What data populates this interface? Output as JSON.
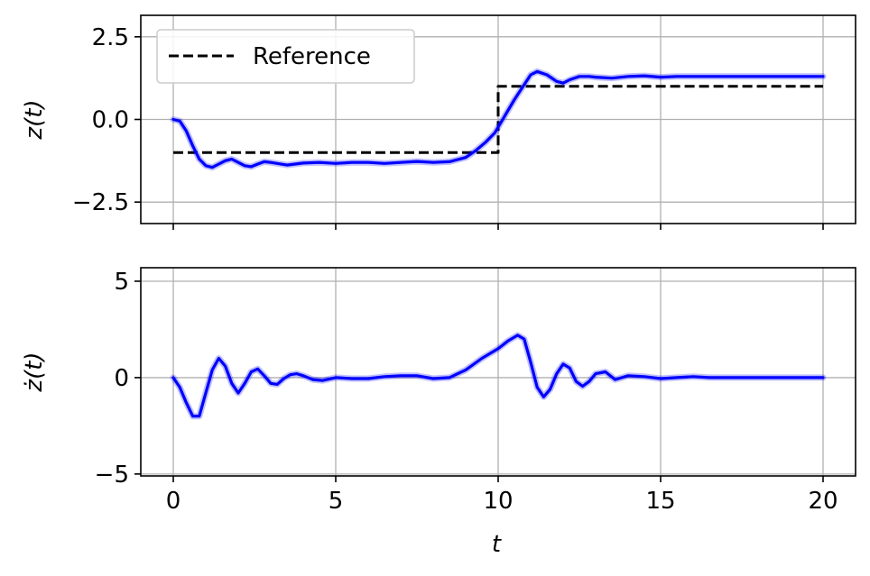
{
  "chart_data": [
    {
      "type": "line",
      "ylabel": "z(t)",
      "xlabel": "",
      "xlim": [
        -1,
        21
      ],
      "ylim": [
        -3.15,
        3.15
      ],
      "xticks": [
        0,
        5,
        10,
        15,
        20
      ],
      "show_xticklabels": false,
      "yticks": [
        -2.5,
        0.0,
        2.5
      ],
      "ytick_labels": [
        "−2.5",
        "0.0",
        "2.5"
      ],
      "grid": true,
      "legend": {
        "position": "top-left",
        "entries": [
          "Reference"
        ]
      },
      "series": [
        {
          "name": "Reference",
          "style": "dashed",
          "color": "#000000",
          "x": [
            0,
            10,
            10,
            20
          ],
          "y": [
            -1,
            -1,
            1,
            1
          ]
        },
        {
          "style": "solid",
          "color": "#0000ff",
          "x": [
            0,
            0.2,
            0.4,
            0.6,
            0.8,
            1.0,
            1.2,
            1.4,
            1.6,
            1.8,
            2.0,
            2.2,
            2.4,
            2.6,
            2.8,
            3.0,
            3.5,
            4.0,
            4.5,
            5.0,
            5.5,
            6.0,
            6.5,
            7.0,
            7.5,
            8.0,
            8.5,
            9.0,
            9.3,
            9.6,
            9.9,
            10.2,
            10.5,
            10.8,
            11.0,
            11.2,
            11.5,
            11.8,
            12.0,
            12.2,
            12.5,
            12.8,
            13.0,
            13.5,
            14.0,
            14.5,
            15.0,
            15.5,
            16.0,
            17.0,
            18.0,
            19.0,
            20.0
          ],
          "y": [
            0,
            -0.05,
            -0.35,
            -0.8,
            -1.2,
            -1.4,
            -1.45,
            -1.35,
            -1.25,
            -1.2,
            -1.3,
            -1.4,
            -1.43,
            -1.35,
            -1.28,
            -1.3,
            -1.38,
            -1.32,
            -1.3,
            -1.33,
            -1.3,
            -1.3,
            -1.33,
            -1.3,
            -1.27,
            -1.3,
            -1.28,
            -1.15,
            -0.95,
            -0.7,
            -0.4,
            0.1,
            0.6,
            1.05,
            1.35,
            1.45,
            1.35,
            1.15,
            1.1,
            1.2,
            1.3,
            1.3,
            1.28,
            1.25,
            1.3,
            1.32,
            1.28,
            1.3,
            1.3,
            1.3,
            1.3,
            1.3,
            1.3
          ]
        }
      ]
    },
    {
      "type": "line",
      "ylabel": "ż(t)",
      "xlabel": "t",
      "xlim": [
        -1,
        21
      ],
      "ylim": [
        -5.1,
        5.7
      ],
      "xticks": [
        0,
        5,
        10,
        15,
        20
      ],
      "xtick_labels": [
        "0",
        "5",
        "10",
        "15",
        "20"
      ],
      "yticks": [
        -5,
        0,
        5
      ],
      "ytick_labels": [
        "−5",
        "0",
        "5"
      ],
      "grid": true,
      "series": [
        {
          "style": "solid",
          "color": "#0000ff",
          "x": [
            0,
            0.2,
            0.4,
            0.6,
            0.8,
            1.0,
            1.2,
            1.4,
            1.6,
            1.8,
            2.0,
            2.2,
            2.4,
            2.6,
            2.8,
            3.0,
            3.2,
            3.4,
            3.6,
            3.8,
            4.0,
            4.3,
            4.6,
            5.0,
            5.5,
            6.0,
            6.5,
            7.0,
            7.5,
            8.0,
            8.5,
            9.0,
            9.5,
            10.0,
            10.3,
            10.6,
            10.8,
            11.0,
            11.2,
            11.4,
            11.6,
            11.8,
            12.0,
            12.2,
            12.4,
            12.6,
            12.8,
            13.0,
            13.3,
            13.6,
            14.0,
            14.5,
            15.0,
            15.5,
            16.0,
            16.5,
            17.0,
            18.0,
            19.0,
            20.0
          ],
          "y": [
            0,
            -0.5,
            -1.3,
            -2.0,
            -2.0,
            -0.8,
            0.4,
            1.0,
            0.6,
            -0.3,
            -0.8,
            -0.3,
            0.3,
            0.45,
            0.1,
            -0.3,
            -0.35,
            -0.05,
            0.15,
            0.2,
            0.1,
            -0.1,
            -0.15,
            0.0,
            -0.05,
            -0.05,
            0.05,
            0.1,
            0.1,
            -0.05,
            0.0,
            0.4,
            1.0,
            1.5,
            1.9,
            2.2,
            2.0,
            0.8,
            -0.5,
            -1.0,
            -0.6,
            0.2,
            0.7,
            0.5,
            -0.2,
            -0.45,
            -0.2,
            0.2,
            0.3,
            -0.1,
            0.1,
            0.05,
            -0.05,
            0.0,
            0.05,
            0.0,
            0.0,
            0.0,
            0.0,
            0.0
          ]
        }
      ]
    }
  ]
}
